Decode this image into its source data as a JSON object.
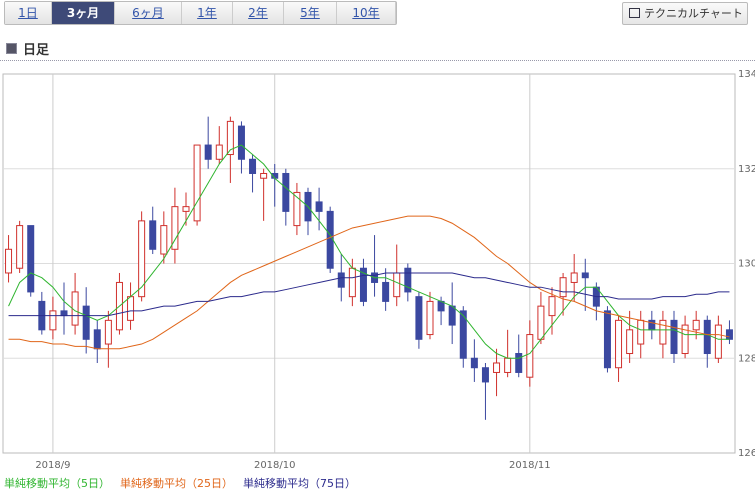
{
  "tabs": {
    "items": [
      "1日",
      "3ヶ月",
      "6ヶ月",
      "1年",
      "2年",
      "5年",
      "10年"
    ],
    "selected": 1
  },
  "button": "テクニカルチャート",
  "section": "日足",
  "chart_data": {
    "type": "candlestick",
    "categories": [
      null,
      null,
      null,
      null,
      "2018/9",
      null,
      null,
      null,
      null,
      null,
      null,
      null,
      null,
      null,
      null,
      null,
      null,
      null,
      null,
      null,
      null,
      null,
      null,
      null,
      "2018/10",
      null,
      null,
      null,
      null,
      null,
      null,
      null,
      null,
      null,
      null,
      null,
      null,
      null,
      null,
      null,
      null,
      null,
      null,
      null,
      null,
      null,
      null,
      "2018/11",
      null,
      null,
      null,
      null,
      null,
      null,
      null,
      null,
      null,
      null,
      null,
      null,
      null,
      null,
      null,
      null,
      null,
      null
    ],
    "open": [
      129.8,
      129.9,
      130.8,
      129.2,
      128.6,
      129.0,
      128.7,
      129.1,
      128.6,
      128.3,
      128.6,
      128.8,
      129.3,
      130.9,
      130.2,
      130.3,
      131.1,
      130.9,
      132.5,
      132.2,
      132.3,
      132.9,
      132.2,
      131.8,
      131.9,
      131.9,
      130.8,
      131.5,
      131.3,
      131.1,
      129.8,
      129.3,
      129.9,
      129.8,
      129.6,
      129.3,
      129.9,
      129.3,
      128.5,
      129.2,
      129.1,
      129.0,
      128.0,
      127.8,
      127.7,
      127.7,
      128.1,
      127.6,
      128.4,
      128.9,
      129.3,
      129.6,
      129.8,
      129.5,
      129.0,
      127.8,
      128.1,
      128.3,
      128.8,
      128.3,
      128.8,
      128.1,
      128.6,
      128.8,
      128.0,
      128.6
    ],
    "high": [
      130.6,
      130.9,
      130.8,
      129.4,
      129.3,
      129.6,
      129.8,
      129.5,
      128.8,
      129.0,
      129.8,
      129.6,
      131.1,
      131.2,
      131.1,
      131.6,
      131.5,
      132.5,
      133.1,
      132.9,
      133.1,
      133.0,
      132.3,
      132.0,
      132.1,
      132.0,
      131.7,
      131.6,
      131.6,
      131.2,
      130.2,
      130.1,
      130.1,
      130.6,
      129.9,
      130.4,
      130.0,
      129.4,
      129.4,
      129.3,
      129.6,
      129.1,
      128.4,
      127.9,
      128.2,
      128.6,
      128.5,
      128.8,
      129.4,
      129.5,
      129.8,
      130.2,
      130.1,
      129.6,
      129.1,
      128.9,
      129.0,
      129.0,
      129.0,
      129.0,
      129.0,
      128.9,
      129.0,
      128.9,
      128.9,
      128.8
    ],
    "low": [
      129.6,
      129.8,
      129.3,
      128.5,
      128.4,
      128.5,
      128.5,
      128.1,
      127.9,
      127.8,
      128.5,
      128.6,
      129.2,
      130.2,
      130.0,
      130.0,
      130.8,
      130.8,
      132.0,
      132.1,
      131.7,
      131.9,
      131.5,
      130.9,
      131.2,
      130.8,
      130.6,
      130.6,
      130.7,
      129.8,
      129.2,
      129.1,
      129.1,
      129.3,
      129.0,
      129.1,
      129.2,
      128.2,
      128.4,
      128.7,
      128.3,
      127.8,
      127.5,
      126.7,
      127.2,
      127.6,
      127.6,
      127.4,
      128.3,
      128.5,
      128.9,
      129.2,
      129.0,
      128.8,
      127.7,
      127.5,
      127.9,
      128.0,
      128.4,
      128.0,
      127.9,
      128.0,
      128.4,
      127.8,
      127.9,
      128.3
    ],
    "close": [
      130.3,
      130.8,
      129.4,
      128.6,
      129.0,
      128.9,
      129.4,
      128.4,
      128.2,
      128.8,
      129.6,
      129.3,
      130.9,
      130.3,
      130.8,
      131.2,
      131.2,
      132.5,
      132.2,
      132.5,
      133.0,
      132.2,
      131.9,
      131.9,
      131.8,
      131.1,
      131.5,
      130.9,
      131.1,
      129.9,
      129.5,
      129.9,
      129.2,
      129.6,
      129.2,
      129.8,
      129.4,
      128.4,
      129.2,
      129.0,
      128.7,
      128.0,
      127.8,
      127.5,
      127.9,
      128.0,
      127.7,
      128.5,
      129.1,
      129.3,
      129.7,
      129.8,
      129.7,
      129.1,
      127.8,
      128.8,
      128.6,
      128.8,
      128.6,
      128.8,
      128.1,
      128.7,
      128.8,
      128.1,
      128.7,
      128.4
    ],
    "up_color": "#d0302c",
    "down_color": "#3b48a0",
    "series": [
      {
        "name": "単純移動平均（5日）",
        "color": "#2fb52f",
        "values": [
          129.1,
          129.6,
          129.8,
          129.7,
          129.5,
          129.2,
          129.0,
          128.9,
          128.8,
          128.9,
          129.1,
          129.3,
          129.5,
          129.8,
          130.1,
          130.5,
          130.9,
          131.3,
          131.7,
          132.1,
          132.4,
          132.5,
          132.3,
          132.1,
          131.8,
          131.6,
          131.4,
          131.2,
          130.9,
          130.6,
          130.2,
          129.9,
          129.8,
          129.7,
          129.7,
          129.6,
          129.5,
          129.4,
          129.3,
          129.2,
          129.1,
          128.9,
          128.6,
          128.3,
          128.1,
          128.0,
          128.0,
          128.1,
          128.4,
          128.7,
          129.0,
          129.3,
          129.5,
          129.5,
          129.2,
          128.9,
          128.7,
          128.6,
          128.6,
          128.6,
          128.6,
          128.5,
          128.5,
          128.5,
          128.4,
          128.4
        ]
      },
      {
        "name": "単純移動平均（25日）",
        "color": "#e0661a",
        "values": [
          128.4,
          128.4,
          128.35,
          128.35,
          128.3,
          128.3,
          128.25,
          128.25,
          128.2,
          128.2,
          128.2,
          128.25,
          128.3,
          128.4,
          128.55,
          128.7,
          128.85,
          129.0,
          129.2,
          129.4,
          129.6,
          129.75,
          129.85,
          129.95,
          130.05,
          130.15,
          130.25,
          130.35,
          130.45,
          130.55,
          130.65,
          130.75,
          130.8,
          130.85,
          130.9,
          130.95,
          131.0,
          131.0,
          131.0,
          130.95,
          130.85,
          130.7,
          130.55,
          130.35,
          130.15,
          130.0,
          129.8,
          129.6,
          129.45,
          129.35,
          129.25,
          129.2,
          129.1,
          129.0,
          128.95,
          128.9,
          128.85,
          128.8,
          128.75,
          128.7,
          128.65,
          128.6,
          128.55,
          128.5,
          128.5,
          128.45
        ]
      },
      {
        "name": "単純移動平均（75日）",
        "color": "#2b2a8c",
        "values": [
          128.9,
          128.9,
          128.9,
          128.9,
          128.9,
          128.9,
          128.9,
          128.9,
          128.9,
          128.9,
          128.95,
          129.0,
          129.0,
          129.05,
          129.1,
          129.1,
          129.15,
          129.2,
          129.2,
          129.25,
          129.3,
          129.3,
          129.35,
          129.4,
          129.4,
          129.45,
          129.5,
          129.55,
          129.6,
          129.65,
          129.7,
          129.7,
          129.75,
          129.75,
          129.8,
          129.8,
          129.8,
          129.8,
          129.8,
          129.8,
          129.8,
          129.75,
          129.7,
          129.7,
          129.65,
          129.6,
          129.55,
          129.5,
          129.5,
          129.45,
          129.4,
          129.4,
          129.35,
          129.3,
          129.3,
          129.25,
          129.25,
          129.25,
          129.25,
          129.3,
          129.3,
          129.3,
          129.35,
          129.35,
          129.4,
          129.4
        ]
      }
    ],
    "ylim": [
      126,
      134
    ],
    "yticks": [
      126,
      128,
      130,
      132,
      134
    ],
    "grid": true
  }
}
